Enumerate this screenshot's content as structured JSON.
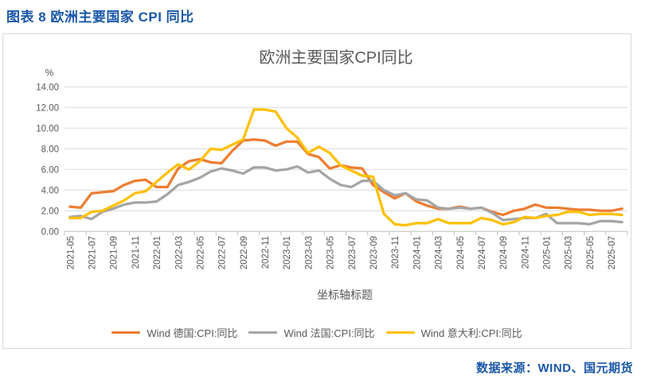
{
  "page": {
    "header_title": "图表 8  欧洲主要国家 CPI 同比",
    "source_note": "数据来源：WIND、国元期货"
  },
  "colors": {
    "accent_blue": "#1A57A8",
    "label_gray": "#595959",
    "gridline": "#D9D9D9",
    "axis": "#BFBFBF",
    "germany": "#ED7D31",
    "france": "#A5A5A5",
    "italy": "#FFC000"
  },
  "chart_data": {
    "type": "line",
    "title": "欧洲主要国家CPI同比",
    "xlabel": "坐标轴标题",
    "ylabel": "",
    "y_unit_label": "%",
    "ylim": [
      0,
      14
    ],
    "y_tick_step": 2,
    "y_tick_labels": [
      "0.00",
      "2.00",
      "4.00",
      "6.00",
      "8.00",
      "10.00",
      "12.00",
      "14.00"
    ],
    "grid": true,
    "legend_position": "bottom",
    "x": [
      "2021-05",
      "2021-06",
      "2021-07",
      "2021-08",
      "2021-09",
      "2021-10",
      "2021-11",
      "2021-12",
      "2022-01",
      "2022-02",
      "2022-03",
      "2022-04",
      "2022-05",
      "2022-06",
      "2022-07",
      "2022-08",
      "2022-09",
      "2022-10",
      "2022-11",
      "2022-12",
      "2023-01",
      "2023-02",
      "2023-03",
      "2023-04",
      "2023-05",
      "2023-06",
      "2023-07",
      "2023-08",
      "2023-09",
      "2023-10",
      "2023-11",
      "2023-12",
      "2024-01",
      "2024-02",
      "2024-03",
      "2024-04",
      "2024-05",
      "2024-06",
      "2024-07",
      "2024-08",
      "2024-09",
      "2024-10",
      "2024-11",
      "2024-12",
      "2025-01",
      "2025-02",
      "2025-03",
      "2025-04",
      "2025-05",
      "2025-06",
      "2025-07",
      "2025-08"
    ],
    "x_tick_labels": [
      "2021-05",
      "2021-07",
      "2021-09",
      "2021-11",
      "2022-01",
      "2022-03",
      "2022-05",
      "2022-07",
      "2022-09",
      "2022-11",
      "2023-01",
      "2023-03",
      "2023-05",
      "2023-07",
      "2023-09",
      "2023-11",
      "2024-01",
      "2024-03",
      "2024-05",
      "2024-07",
      "2024-09",
      "2024-11",
      "2025-01",
      "2025-03",
      "2025-05",
      "2025-07"
    ],
    "series": [
      {
        "key": "germany",
        "name": "Wind 德国:CPI:同比",
        "color": "#ED7D31",
        "values": [
          2.4,
          2.3,
          3.7,
          3.8,
          3.9,
          4.5,
          4.9,
          5.0,
          4.3,
          4.3,
          6.1,
          6.8,
          7.0,
          6.7,
          6.6,
          7.8,
          8.8,
          8.9,
          8.8,
          8.3,
          8.7,
          8.7,
          7.5,
          7.2,
          6.1,
          6.4,
          6.2,
          6.1,
          4.5,
          3.8,
          3.2,
          3.7,
          2.9,
          2.5,
          2.2,
          2.2,
          2.4,
          2.2,
          2.3,
          1.9,
          1.6,
          2.0,
          2.2,
          2.6,
          2.3,
          2.3,
          2.2,
          2.1,
          2.1,
          2.0,
          2.0,
          2.2
        ]
      },
      {
        "key": "france",
        "name": "Wind 法国:CPI:同比",
        "color": "#A5A5A5",
        "values": [
          1.4,
          1.5,
          1.2,
          1.9,
          2.2,
          2.6,
          2.8,
          2.8,
          2.9,
          3.6,
          4.5,
          4.8,
          5.2,
          5.8,
          6.1,
          5.9,
          5.6,
          6.2,
          6.2,
          5.9,
          6.0,
          6.3,
          5.7,
          5.9,
          5.1,
          4.5,
          4.3,
          4.9,
          4.9,
          4.0,
          3.5,
          3.7,
          3.1,
          3.0,
          2.3,
          2.2,
          2.3,
          2.2,
          2.3,
          1.8,
          1.1,
          1.2,
          1.3,
          1.3,
          1.7,
          0.8,
          0.8,
          0.8,
          0.7,
          1.0,
          1.0,
          0.9
        ]
      },
      {
        "key": "italy",
        "name": "Wind 意大利:CPI:同比",
        "color": "#FFC000",
        "values": [
          1.3,
          1.3,
          1.9,
          2.0,
          2.5,
          3.0,
          3.7,
          3.9,
          4.8,
          5.7,
          6.5,
          6.0,
          6.8,
          8.0,
          7.9,
          8.4,
          8.9,
          11.8,
          11.8,
          11.6,
          10.0,
          9.1,
          7.6,
          8.2,
          7.6,
          6.4,
          5.9,
          5.4,
          5.3,
          1.7,
          0.7,
          0.6,
          0.8,
          0.8,
          1.2,
          0.8,
          0.8,
          0.8,
          1.3,
          1.1,
          0.7,
          0.9,
          1.4,
          1.3,
          1.5,
          1.6,
          1.9,
          1.9,
          1.6,
          1.7,
          1.7,
          1.6
        ]
      }
    ]
  }
}
